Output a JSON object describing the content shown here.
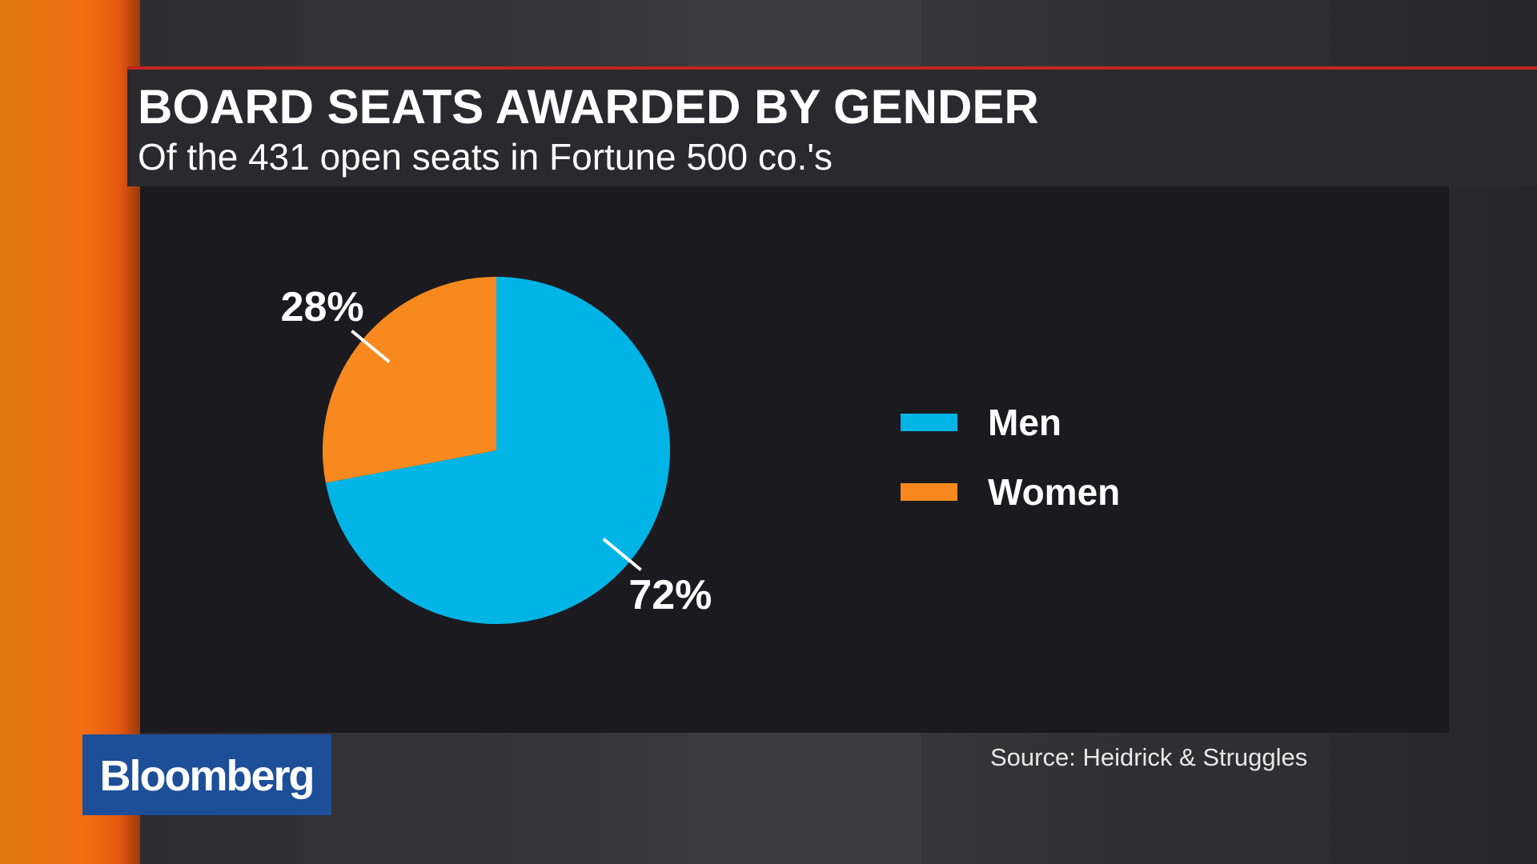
{
  "chart_data": {
    "type": "pie",
    "title": "BOARD SEATS AWARDED BY GENDER",
    "subtitle": "Of the 431 open seats in Fortune 500 co.'s",
    "categories": [
      "Men",
      "Women"
    ],
    "values": [
      72,
      28
    ],
    "value_labels": [
      "72%",
      "28%"
    ],
    "colors": [
      "#00b5e6",
      "#f7891f"
    ],
    "source": "Source: Heidrick & Struggles"
  },
  "brand": "Bloomberg"
}
